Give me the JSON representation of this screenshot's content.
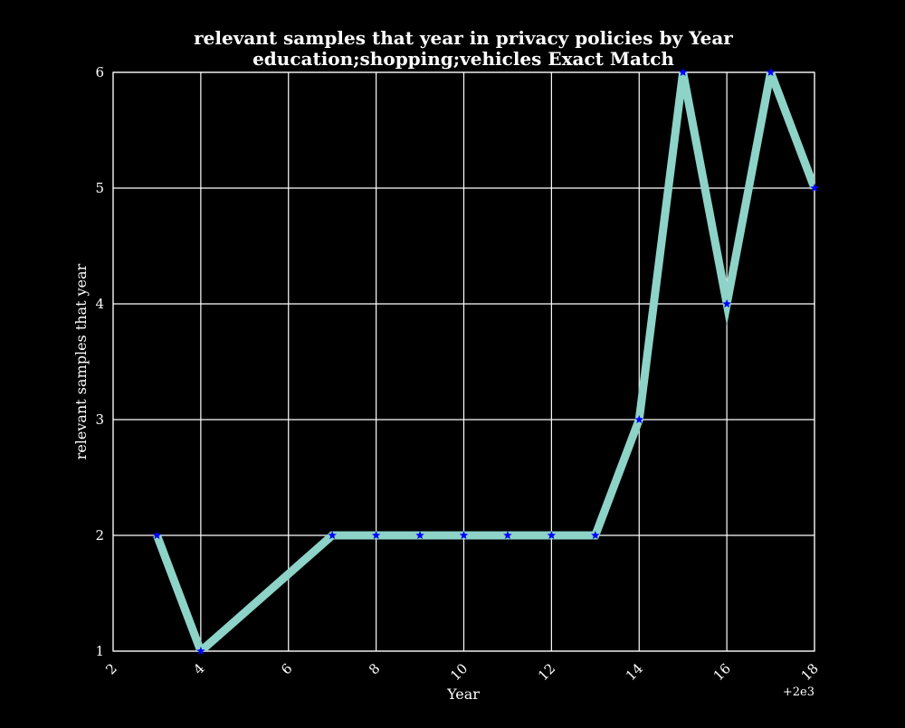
{
  "chart_data": {
    "type": "line",
    "title": "relevant samples that year in privacy policies by Year",
    "subtitle": "education;shopping;vehicles Exact Match",
    "xlabel": "Year",
    "ylabel": "relevant samples that year",
    "x_offset_label": "+2e3",
    "xlim": [
      2,
      18
    ],
    "ylim": [
      1,
      6
    ],
    "x_ticks": [
      2,
      4,
      6,
      8,
      10,
      12,
      14,
      16,
      18
    ],
    "x_tick_labels": [
      "2",
      "4",
      "6",
      "8",
      "10",
      "12",
      "14",
      "16",
      "18"
    ],
    "y_ticks": [
      1,
      2,
      3,
      4,
      5,
      6
    ],
    "y_tick_labels": [
      "1",
      "2",
      "3",
      "4",
      "5",
      "6"
    ],
    "grid": true,
    "series": [
      {
        "x": [
          3,
          4,
          7,
          8,
          9,
          10,
          11,
          12,
          13,
          14,
          15,
          16,
          17,
          18
        ],
        "values": [
          2,
          1,
          2,
          2,
          2,
          2,
          2,
          2,
          2,
          3,
          6,
          4,
          6,
          5
        ],
        "line_color": "#8dd3c7",
        "marker": "star",
        "marker_color": "#0000ff"
      }
    ],
    "colors": {
      "background": "#000000",
      "axes": "#ffffff",
      "grid": "#ffffff",
      "text": "#ffffff"
    }
  }
}
